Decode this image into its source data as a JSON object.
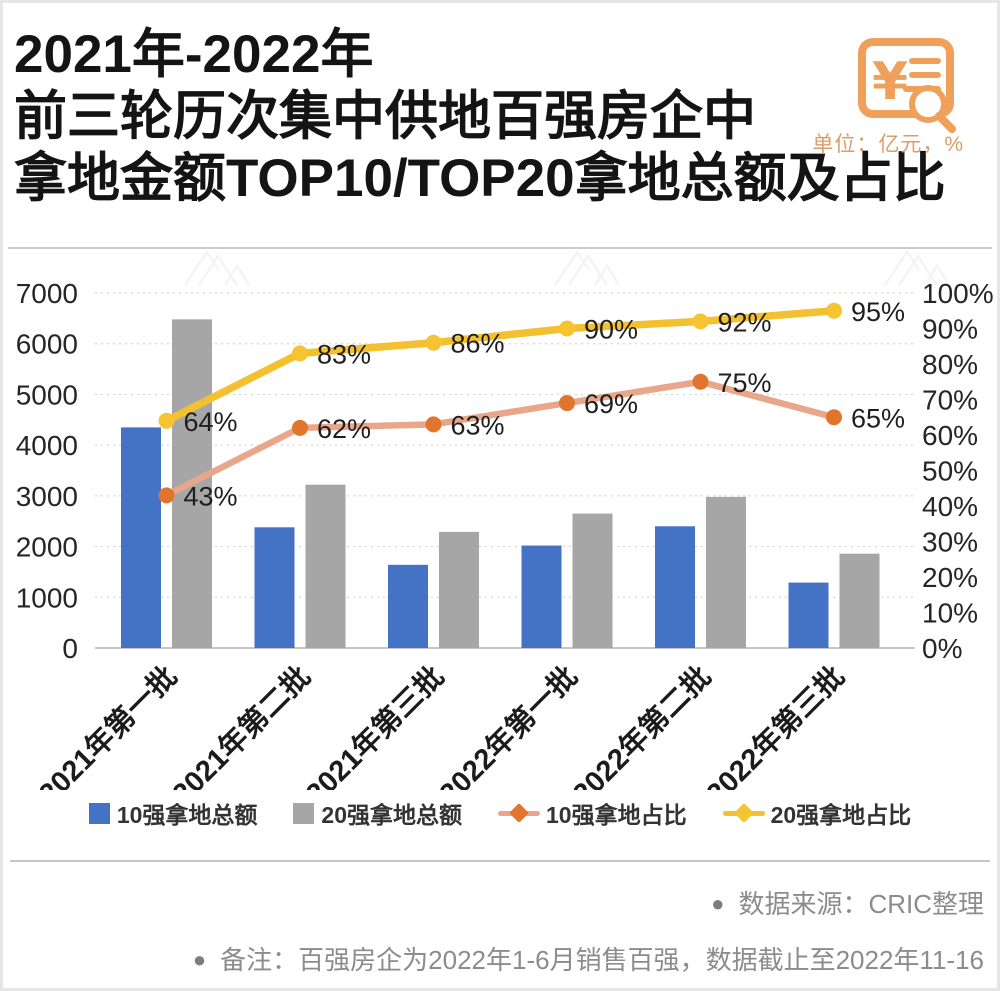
{
  "header": {
    "title_lines": [
      "2021年-2022年",
      "前三轮历次集中供地百强房企中",
      "拿地金额TOP10/TOP20拿地总额及占比"
    ],
    "unit_label": "单位：亿元，%"
  },
  "icon": {
    "name": "money-search-icon",
    "color": "#efa05b"
  },
  "chart_data": {
    "type": "bar+line dual-axis combo",
    "categories": [
      "2021年第一批",
      "2021年第二批",
      "2021年第三批",
      "2022年第一批",
      "2022年第二批",
      "2022年第三批"
    ],
    "series": [
      {
        "name": "10强拿地总额",
        "type": "bar",
        "axis": "left",
        "color": "#4472c4",
        "values": [
          4350,
          2380,
          1640,
          2020,
          2400,
          1290
        ]
      },
      {
        "name": "20强拿地总额",
        "type": "bar",
        "axis": "left",
        "color": "#a6a6a6",
        "values": [
          6480,
          3220,
          2290,
          2650,
          2980,
          1860
        ]
      },
      {
        "name": "10强拿地占比",
        "type": "line",
        "axis": "right",
        "color": "#e8a78b",
        "marker_color": "#e2752d",
        "values": [
          43,
          62,
          63,
          69,
          75,
          65
        ],
        "labels": [
          "43%",
          "62%",
          "63%",
          "69%",
          "75%",
          "65%"
        ]
      },
      {
        "name": "20强拿地占比",
        "type": "line",
        "axis": "right",
        "color": "#f3c12f",
        "marker_color": "#f7c431",
        "values": [
          64,
          83,
          86,
          90,
          92,
          95
        ],
        "labels": [
          "64%",
          "83%",
          "86%",
          "90%",
          "92%",
          "95%"
        ]
      }
    ],
    "left_axis": {
      "ticks": [
        "0",
        "1000",
        "2000",
        "3000",
        "4000",
        "5000",
        "6000",
        "7000"
      ],
      "min": 0,
      "max": 7000
    },
    "right_axis": {
      "ticks": [
        "0%",
        "10%",
        "20%",
        "30%",
        "40%",
        "50%",
        "60%",
        "70%",
        "80%",
        "90%",
        "100%"
      ],
      "min": 0,
      "max": 100
    },
    "grid": "dotted horizontal gridlines at left-axis intervals",
    "legend_position": "bottom"
  },
  "footer": {
    "bullet": "●",
    "source": "数据来源：CRIC整理",
    "note": "备注：百强房企为2022年1-6月销售百强，数据截止至2022年11-16"
  },
  "colors": {
    "bar_top10": "#4472c4",
    "bar_top20": "#a6a6a6",
    "line_top10_share": "#e8a78b",
    "line_top10_marker": "#e2752d",
    "line_top20_share": "#f3c12f",
    "line_top20_marker": "#f7c431",
    "accent_orange": "#efa05b",
    "axis_text": "#262626",
    "grid": "#d5d5d5",
    "footer_text": "#8c8c8c"
  }
}
